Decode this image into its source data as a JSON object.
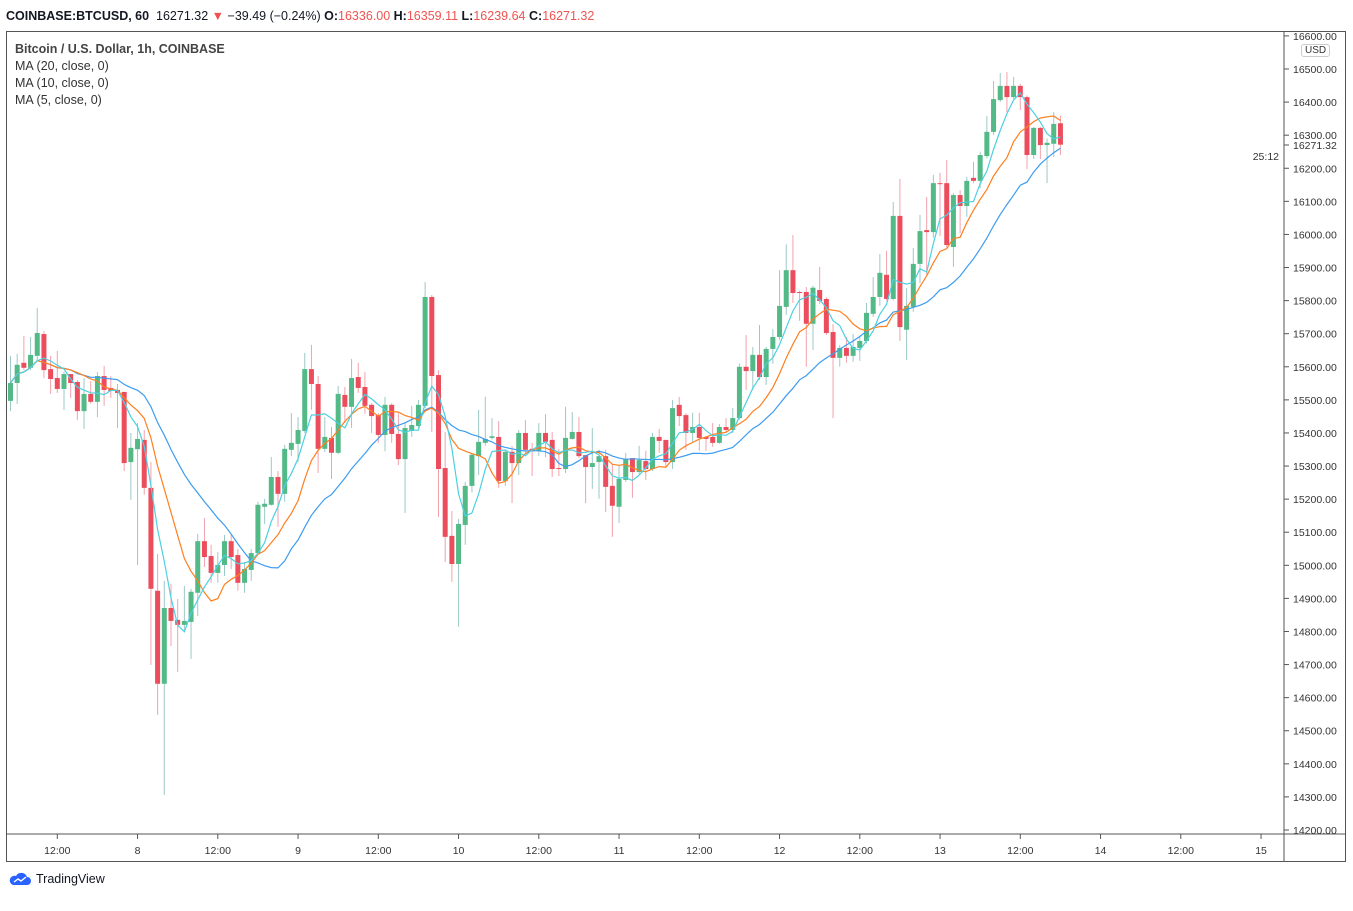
{
  "header": {
    "symbol": "COINBASE:BTCUSD, 60",
    "last": "16271.32",
    "direction_icon": "triangle-down",
    "change": "−39.49 (−0.24%)",
    "o_label": "O:",
    "o": "16336.00",
    "h_label": "H:",
    "h": "16359.11",
    "l_label": "L:",
    "l": "16239.64",
    "c_label": "C:",
    "c": "16271.32"
  },
  "legend": {
    "title": "Bitcoin / U.S. Dollar, 1h, COINBASE",
    "ma20": "MA (20, close, 0)",
    "ma10": "MA (10, close, 0)",
    "ma5": "MA (5, close, 0)"
  },
  "price_axis": {
    "currency": "USD",
    "last_price_label": "16271.32",
    "countdown": "25:12"
  },
  "footer": {
    "brand": "TradingView"
  },
  "colors": {
    "up": "#53b987",
    "down": "#eb4d5c",
    "up_wick": "#9cc9c6",
    "down_wick": "#f2a2ab",
    "ma5": "#4dd0e1",
    "ma10": "#ff7f1e",
    "ma20": "#3d9cf0"
  },
  "chart_data": {
    "type": "candlestick",
    "title": "Bitcoin / U.S. Dollar, 1h, COINBASE",
    "ylim": [
      14200,
      16600
    ],
    "y_ticks": [
      14200,
      14300,
      14400,
      14500,
      14600,
      14700,
      14800,
      14900,
      15000,
      15100,
      15200,
      15300,
      15400,
      15500,
      15600,
      15700,
      15800,
      15900,
      16000,
      16100,
      16200,
      16300,
      16400,
      16500,
      16600
    ],
    "x_tick_labels": [
      "12:00",
      "8",
      "12:00",
      "9",
      "12:00",
      "10",
      "12:00",
      "11",
      "12:00",
      "12",
      "12:00",
      "13",
      "12:00",
      "14",
      "12:00",
      "15"
    ],
    "indicators": [
      {
        "name": "MA (20, close, 0)",
        "period": 20
      },
      {
        "name": "MA (10, close, 0)",
        "period": 10
      },
      {
        "name": "MA (5, close, 0)",
        "period": 5
      }
    ],
    "ohlc": [
      [
        15497,
        15633,
        15466,
        15551
      ],
      [
        15551,
        15639,
        15488,
        15606
      ],
      [
        15612,
        15693,
        15590,
        15597
      ],
      [
        15597,
        15690,
        15590,
        15636
      ],
      [
        15633,
        15778,
        15620,
        15702
      ],
      [
        15699,
        15708,
        15566,
        15590
      ],
      [
        15593,
        15633,
        15518,
        15563
      ],
      [
        15566,
        15648,
        15521,
        15533
      ],
      [
        15533,
        15584,
        15470,
        15578
      ],
      [
        15578,
        15578,
        15506,
        15551
      ],
      [
        15554,
        15560,
        15439,
        15466
      ],
      [
        15466,
        15566,
        15412,
        15518
      ],
      [
        15518,
        15557,
        15488,
        15494
      ],
      [
        15494,
        15584,
        15448,
        15572
      ],
      [
        15572,
        15603,
        15482,
        15530
      ],
      [
        15536,
        15572,
        15506,
        15527
      ],
      [
        15530,
        15548,
        15415,
        15521
      ],
      [
        15524,
        15524,
        15285,
        15309
      ],
      [
        15312,
        15400,
        15198,
        15355
      ],
      [
        15351,
        15430,
        15001,
        15382
      ],
      [
        15379,
        15409,
        15213,
        15234
      ],
      [
        15234,
        15312,
        14699,
        14929
      ],
      [
        14923,
        15034,
        14548,
        14642
      ],
      [
        14642,
        14953,
        14306,
        14871
      ],
      [
        14871,
        14944,
        14756,
        14832
      ],
      [
        14835,
        14898,
        14678,
        14820
      ],
      [
        14820,
        14938,
        14799,
        14832
      ],
      [
        14829,
        14929,
        14717,
        14920
      ],
      [
        14917,
        15095,
        14847,
        15073
      ],
      [
        15073,
        15143,
        14995,
        15025
      ],
      [
        15028,
        15062,
        14947,
        14977
      ],
      [
        14977,
        15040,
        14947,
        15001
      ],
      [
        15001,
        15092,
        14968,
        15073
      ],
      [
        15073,
        15092,
        14989,
        15025
      ],
      [
        15031,
        15049,
        14923,
        14947
      ],
      [
        14947,
        15010,
        14917,
        14989
      ],
      [
        14986,
        15049,
        14953,
        15037
      ],
      [
        15037,
        15192,
        15034,
        15183
      ],
      [
        15177,
        15201,
        15125,
        15186
      ],
      [
        15183,
        15327,
        15180,
        15267
      ],
      [
        15267,
        15285,
        15116,
        15216
      ],
      [
        15216,
        15364,
        15192,
        15352
      ],
      [
        15349,
        15460,
        15330,
        15370
      ],
      [
        15367,
        15448,
        15312,
        15409
      ],
      [
        15406,
        15642,
        15400,
        15593
      ],
      [
        15593,
        15666,
        15470,
        15548
      ],
      [
        15548,
        15572,
        15279,
        15352
      ],
      [
        15352,
        15448,
        15342,
        15388
      ],
      [
        15385,
        15418,
        15261,
        15340
      ],
      [
        15340,
        15542,
        15336,
        15518
      ],
      [
        15515,
        15539,
        15430,
        15479
      ],
      [
        15479,
        15624,
        15415,
        15566
      ],
      [
        15569,
        15612,
        15521,
        15536
      ],
      [
        15539,
        15584,
        15458,
        15482
      ],
      [
        15485,
        15490,
        15400,
        15451
      ],
      [
        15454,
        15460,
        15370,
        15394
      ],
      [
        15394,
        15509,
        15345,
        15485
      ],
      [
        15485,
        15490,
        15370,
        15397
      ],
      [
        15397,
        15460,
        15303,
        15321
      ],
      [
        15321,
        15430,
        15158,
        15415
      ],
      [
        15406,
        15482,
        15388,
        15424
      ],
      [
        15421,
        15500,
        15415,
        15485
      ],
      [
        15482,
        15856,
        15475,
        15811
      ],
      [
        15811,
        15817,
        15403,
        15572
      ],
      [
        15575,
        15590,
        15146,
        15291
      ],
      [
        15294,
        15403,
        15010,
        15086
      ],
      [
        15089,
        15164,
        14950,
        15004
      ],
      [
        15004,
        15140,
        14814,
        15125
      ],
      [
        15122,
        15252,
        15062,
        15240
      ],
      [
        15240,
        15340,
        15220,
        15334
      ],
      [
        15330,
        15470,
        15273,
        15373
      ],
      [
        15370,
        15509,
        15361,
        15382
      ],
      [
        15385,
        15445,
        15380,
        15390
      ],
      [
        15388,
        15436,
        15234,
        15255
      ],
      [
        15255,
        15346,
        15240,
        15343
      ],
      [
        15343,
        15361,
        15188,
        15309
      ],
      [
        15309,
        15409,
        15273,
        15400
      ],
      [
        15400,
        15439,
        15340,
        15349
      ],
      [
        15352,
        15370,
        15270,
        15346
      ],
      [
        15346,
        15430,
        15330,
        15400
      ],
      [
        15400,
        15457,
        15327,
        15373
      ],
      [
        15379,
        15403,
        15267,
        15291
      ],
      [
        15294,
        15352,
        15270,
        15291
      ],
      [
        15291,
        15479,
        15279,
        15385
      ],
      [
        15382,
        15463,
        15380,
        15403
      ],
      [
        15403,
        15448,
        15324,
        15330
      ],
      [
        15333,
        15333,
        15188,
        15297
      ],
      [
        15297,
        15415,
        15231,
        15309
      ],
      [
        15312,
        15349,
        15201,
        15330
      ],
      [
        15330,
        15349,
        15161,
        15237
      ],
      [
        15240,
        15303,
        15086,
        15180
      ],
      [
        15177,
        15303,
        15128,
        15261
      ],
      [
        15258,
        15340,
        15252,
        15321
      ],
      [
        15324,
        15324,
        15204,
        15282
      ],
      [
        15282,
        15361,
        15276,
        15318
      ],
      [
        15315,
        15346,
        15258,
        15291
      ],
      [
        15291,
        15400,
        15285,
        15388
      ],
      [
        15388,
        15412,
        15340,
        15376
      ],
      [
        15379,
        15379,
        15297,
        15312
      ],
      [
        15312,
        15500,
        15291,
        15475
      ],
      [
        15485,
        15509,
        15421,
        15451
      ],
      [
        15454,
        15460,
        15349,
        15400
      ],
      [
        15400,
        15461,
        15373,
        15418
      ],
      [
        15418,
        15461,
        15346,
        15385
      ],
      [
        15388,
        15390,
        15346,
        15382
      ],
      [
        15388,
        15430,
        15358,
        15370
      ],
      [
        15370,
        15427,
        15367,
        15418
      ],
      [
        15418,
        15445,
        15400,
        15409
      ],
      [
        15409,
        15475,
        15400,
        15445
      ],
      [
        15445,
        15610,
        15440,
        15600
      ],
      [
        15600,
        15696,
        15530,
        15587
      ],
      [
        15587,
        15660,
        15530,
        15636
      ],
      [
        15636,
        15726,
        15560,
        15569
      ],
      [
        15569,
        15660,
        15545,
        15654
      ],
      [
        15654,
        15714,
        15609,
        15690
      ],
      [
        15690,
        15892,
        15680,
        15784
      ],
      [
        15781,
        15970,
        15757,
        15892
      ],
      [
        15892,
        15998,
        15793,
        15823
      ],
      [
        15826,
        15830,
        15739,
        15823
      ],
      [
        15826,
        15841,
        15600,
        15730
      ],
      [
        15730,
        15845,
        15651,
        15839
      ],
      [
        15832,
        15902,
        15790,
        15799
      ],
      [
        15805,
        15810,
        15696,
        15702
      ],
      [
        15705,
        15729,
        15445,
        15627
      ],
      [
        15627,
        15666,
        15600,
        15657
      ],
      [
        15657,
        15690,
        15612,
        15633
      ],
      [
        15633,
        15699,
        15615,
        15660
      ],
      [
        15657,
        15690,
        15618,
        15678
      ],
      [
        15678,
        15793,
        15670,
        15763
      ],
      [
        15760,
        15871,
        15751,
        15811
      ],
      [
        15811,
        15941,
        15784,
        15884
      ],
      [
        15878,
        15950,
        15800,
        15805
      ],
      [
        15805,
        16098,
        15800,
        16056
      ],
      [
        16056,
        16168,
        15678,
        15720
      ],
      [
        15712,
        15838,
        15621,
        15784
      ],
      [
        15781,
        15959,
        15766,
        15911
      ],
      [
        15911,
        16059,
        15853,
        16010
      ],
      [
        16013,
        16113,
        15878,
        16007
      ],
      [
        16007,
        16180,
        15990,
        16155
      ],
      [
        16155,
        16186,
        15995,
        16152
      ],
      [
        16155,
        16225,
        15960,
        15968
      ],
      [
        15962,
        16125,
        15902,
        16119
      ],
      [
        16119,
        16134,
        16004,
        16086
      ],
      [
        16086,
        16174,
        16053,
        16162
      ],
      [
        16171,
        16219,
        16155,
        16162
      ],
      [
        16162,
        16250,
        16140,
        16240
      ],
      [
        16237,
        16358,
        16230,
        16310
      ],
      [
        16310,
        16464,
        16300,
        16409
      ],
      [
        16406,
        16488,
        16400,
        16449
      ],
      [
        16449,
        16491,
        16370,
        16415
      ],
      [
        16415,
        16476,
        16410,
        16449
      ],
      [
        16449,
        16455,
        16376,
        16415
      ],
      [
        16415,
        16420,
        16198,
        16240
      ],
      [
        16240,
        16325,
        16228,
        16322
      ],
      [
        16322,
        16325,
        16228,
        16270
      ],
      [
        16270,
        16290,
        16155,
        16277
      ],
      [
        16274,
        16370,
        16234,
        16334
      ],
      [
        16336.0,
        16359.11,
        16239.64,
        16271.32
      ]
    ]
  }
}
